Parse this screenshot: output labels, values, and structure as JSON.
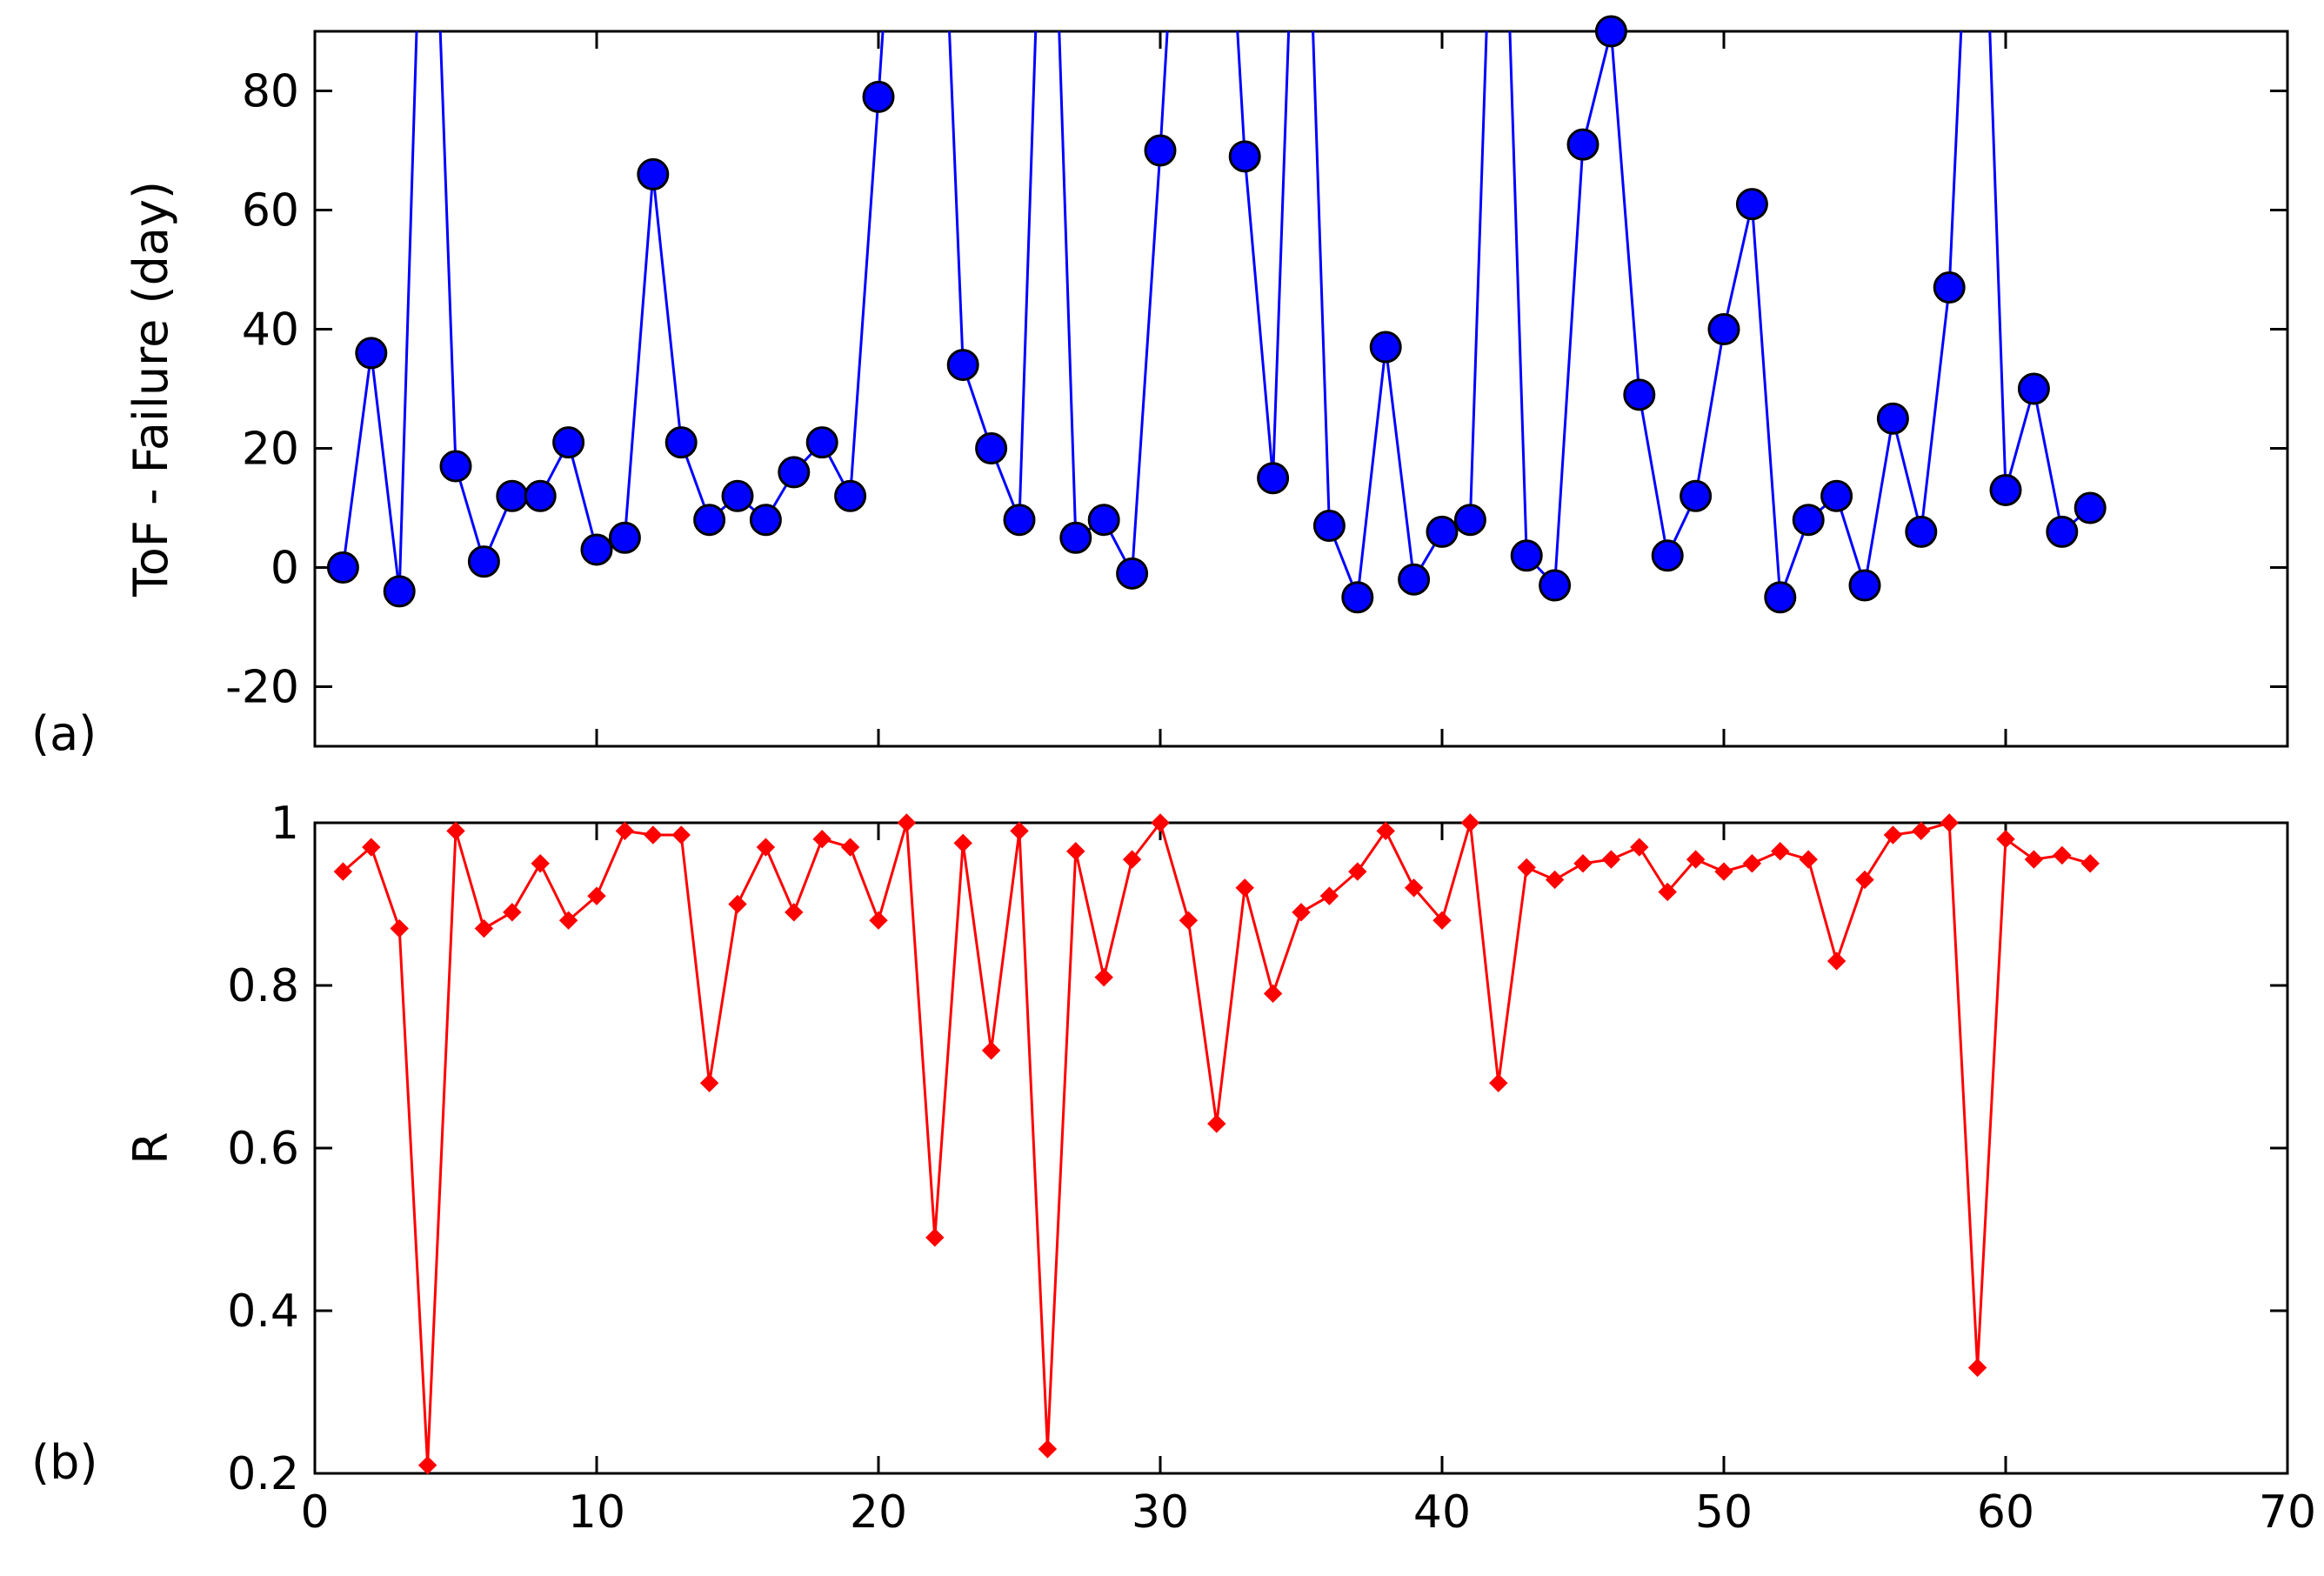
{
  "colors": {
    "series_a": "#0000ff",
    "marker_a_edge": "#000000",
    "series_b": "#ff0000",
    "axis": "#000000",
    "background": "#ffffff"
  },
  "chart_data": [
    {
      "panel_label": "(a)",
      "type": "line",
      "marker": "circle",
      "ylabel": "ToF - Failure (day)",
      "xlabel": "",
      "xlim": [
        0,
        70
      ],
      "ylim": [
        -30,
        90
      ],
      "yticks": [
        -20,
        0,
        20,
        40,
        60,
        80
      ],
      "xticks": [
        0,
        10,
        20,
        30,
        40,
        50,
        60,
        70
      ],
      "show_x_tick_labels": false,
      "grid": false,
      "series": [
        {
          "color": "#0000ff",
          "x": [
            1,
            2,
            3,
            4,
            5,
            6,
            7,
            8,
            9,
            10,
            11,
            12,
            13,
            14,
            15,
            16,
            17,
            18,
            19,
            20,
            21,
            22,
            23,
            24,
            25,
            26,
            27,
            28,
            29,
            30,
            31,
            32,
            33,
            34,
            35,
            36,
            37,
            38,
            39,
            40,
            41,
            42,
            43,
            44,
            45,
            46,
            47,
            48,
            49,
            50,
            51,
            52,
            53,
            54,
            55,
            56,
            57,
            58,
            59,
            60,
            61,
            62,
            63
          ],
          "y": [
            0,
            36,
            -4,
            null,
            17,
            1,
            12,
            12,
            21,
            3,
            5,
            66,
            21,
            8,
            12,
            8,
            16,
            21,
            12,
            79,
            null,
            null,
            34,
            20,
            8,
            null,
            5,
            8,
            -1,
            70,
            null,
            null,
            69,
            15,
            null,
            7,
            -5,
            37,
            -2,
            6,
            8,
            null,
            2,
            -3,
            71,
            90,
            29,
            2,
            12,
            40,
            61,
            -5,
            8,
            12,
            -3,
            25,
            6,
            47,
            null,
            13,
            30,
            6,
            10
          ]
        }
      ]
    },
    {
      "panel_label": "(b)",
      "type": "line",
      "marker": "diamond",
      "ylabel": "R",
      "xlabel": "",
      "xlim": [
        0,
        70
      ],
      "ylim": [
        0.2,
        1
      ],
      "yticks": [
        0.2,
        0.4,
        0.6,
        0.8,
        1
      ],
      "ytick_labels": [
        "0.2",
        "0.4",
        "0.6",
        "0.8",
        "1"
      ],
      "xticks": [
        0,
        10,
        20,
        30,
        40,
        50,
        60,
        70
      ],
      "xtick_labels": [
        "0",
        "10",
        "20",
        "30",
        "40",
        "50",
        "60",
        "70"
      ],
      "grid": false,
      "series": [
        {
          "color": "#ff0000",
          "x": [
            1,
            2,
            3,
            4,
            5,
            6,
            7,
            8,
            9,
            10,
            11,
            12,
            13,
            14,
            15,
            16,
            17,
            18,
            19,
            20,
            21,
            22,
            23,
            24,
            25,
            26,
            27,
            28,
            29,
            30,
            31,
            32,
            33,
            34,
            35,
            36,
            37,
            38,
            39,
            40,
            41,
            42,
            43,
            44,
            45,
            46,
            47,
            48,
            49,
            50,
            51,
            52,
            53,
            54,
            55,
            56,
            57,
            58,
            59,
            60,
            61,
            62,
            63
          ],
          "y": [
            0.94,
            0.97,
            0.87,
            0.21,
            0.99,
            0.87,
            0.89,
            0.95,
            0.88,
            0.91,
            0.99,
            0.985,
            0.985,
            0.68,
            0.9,
            0.97,
            0.89,
            0.98,
            0.97,
            0.88,
            1.0,
            0.49,
            0.975,
            0.72,
            0.99,
            0.23,
            0.965,
            0.81,
            0.955,
            1.0,
            0.88,
            0.63,
            0.92,
            0.79,
            0.89,
            0.91,
            0.94,
            0.99,
            0.92,
            0.88,
            1.0,
            0.68,
            0.945,
            0.93,
            0.95,
            0.955,
            0.97,
            0.915,
            0.955,
            0.94,
            0.95,
            0.965,
            0.955,
            0.83,
            0.93,
            0.985,
            0.99,
            1.0,
            0.33,
            0.98,
            0.955,
            0.96,
            0.95
          ]
        }
      ]
    }
  ]
}
